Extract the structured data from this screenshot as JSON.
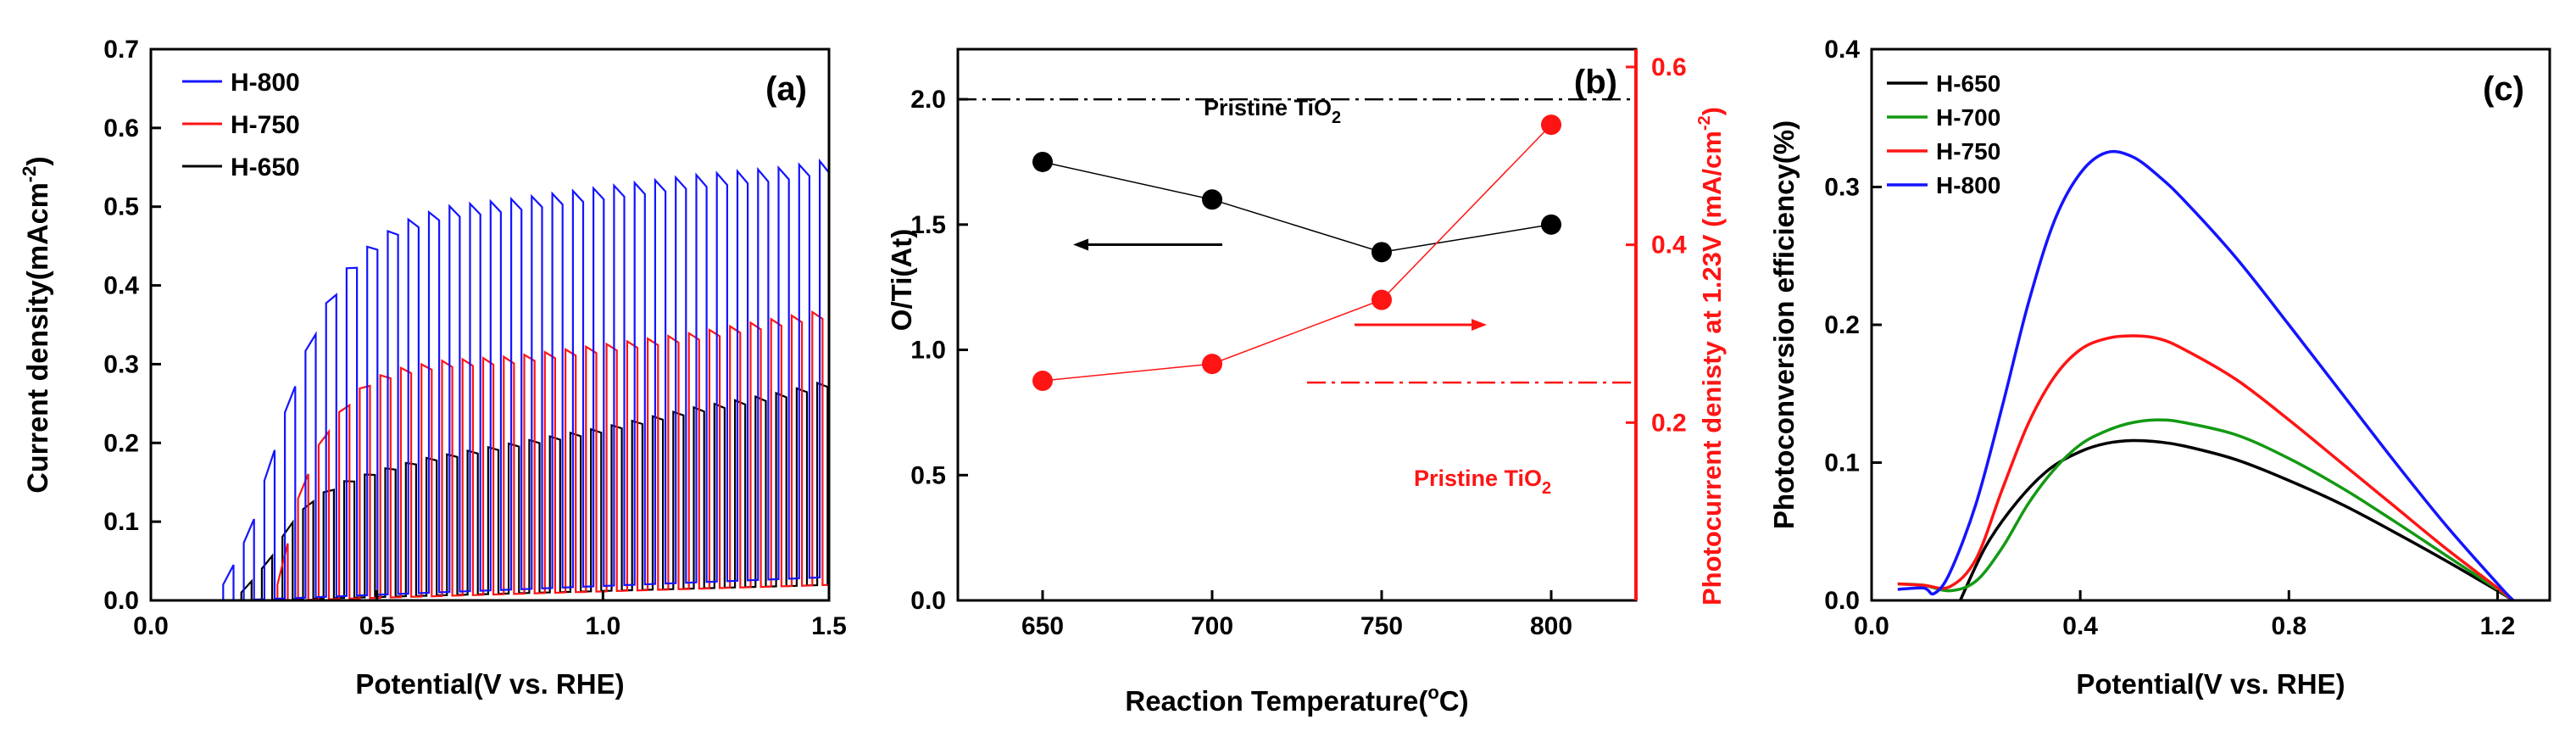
{
  "colors": {
    "blue": "#1414ff",
    "red": "#ff1414",
    "green": "#139913",
    "black": "#000000"
  },
  "panels": {
    "a": {
      "label": "(a)",
      "xlabel": "Potential(V vs. RHE)",
      "ylabel": "Current density(mAcm",
      "ylabel_sup": "-2",
      "ylabel_close": ")",
      "xlim": [
        0.0,
        1.5
      ],
      "ylim": [
        0.0,
        0.7
      ],
      "xticks": [
        "0.0",
        "0.5",
        "1.0",
        "1.5"
      ],
      "yticks": [
        "0.0",
        "0.1",
        "0.2",
        "0.3",
        "0.4",
        "0.5",
        "0.6",
        "0.7"
      ],
      "legend": [
        {
          "name": "H-800",
          "color": "#1414ff"
        },
        {
          "name": "H-750",
          "color": "#ff1414"
        },
        {
          "name": "H-650",
          "color": "#000000"
        }
      ]
    },
    "b": {
      "label": "(b)",
      "xlabel": "Reaction Temperature(",
      "xlabel_sup": "o",
      "xlabel_end": "C)",
      "ylabel_left": "O/Ti(At)",
      "ylabel_right": "Photocurrent denisty at 1.23V (mA/cm",
      "ylabel_right_sup": "-2",
      "ylabel_right_close": ")",
      "xticks": [
        "650",
        "700",
        "750",
        "800"
      ],
      "yticks_left": [
        "0.0",
        "0.5",
        "1.0",
        "1.5",
        "2.0"
      ],
      "yticks_right": [
        "0.2",
        "0.4",
        "0.6"
      ],
      "ref_black_text": "Pristine TiO",
      "ref_black_sub": "2",
      "ref_red_text": "Pristine TiO",
      "ref_red_sub": "2"
    },
    "c": {
      "label": "(c)",
      "xlabel": "Potential(V vs. RHE)",
      "ylabel": "Photoconversion efficiency(%)",
      "xticks": [
        "0.0",
        "0.4",
        "0.8",
        "1.2"
      ],
      "yticks": [
        "0.0",
        "0.1",
        "0.2",
        "0.3",
        "0.4"
      ],
      "legend": [
        {
          "name": "H-650",
          "color": "#000000"
        },
        {
          "name": "H-700",
          "color": "#139913"
        },
        {
          "name": "H-750",
          "color": "#ff1414"
        },
        {
          "name": "H-800",
          "color": "#1414ff"
        }
      ]
    }
  },
  "chart_data": [
    {
      "type": "line",
      "title": "(a)",
      "xlabel": "Potential(V vs. RHE)",
      "ylabel": "Current density(mAcm-2)",
      "xlim": [
        0.0,
        1.5
      ],
      "ylim": [
        0.0,
        0.7
      ],
      "chopped_light": true,
      "pulse_start": 0.16,
      "pulse_period": 0.0455,
      "series": [
        {
          "name": "H-800",
          "color": "#1414ff",
          "onset": 0.16,
          "dark_min": 0.0,
          "dark_end": 0.03,
          "envelope_x": [
            0.16,
            0.22,
            0.27,
            0.33,
            0.38,
            0.43,
            0.48,
            0.55,
            0.65,
            0.8,
            1.0,
            1.2,
            1.4,
            1.5
          ],
          "envelope_y": [
            0.02,
            0.09,
            0.19,
            0.3,
            0.37,
            0.42,
            0.45,
            0.48,
            0.5,
            0.51,
            0.525,
            0.54,
            0.55,
            0.56
          ]
        },
        {
          "name": "H-750",
          "color": "#ff1414",
          "onset": 0.28,
          "dark_min": 0.0,
          "dark_end": 0.02,
          "envelope_x": [
            0.28,
            0.33,
            0.38,
            0.43,
            0.48,
            0.55,
            0.65,
            0.8,
            1.0,
            1.2,
            1.4,
            1.5
          ],
          "envelope_y": [
            0.02,
            0.14,
            0.21,
            0.25,
            0.28,
            0.295,
            0.305,
            0.31,
            0.325,
            0.34,
            0.36,
            0.37
          ]
        },
        {
          "name": "H-650",
          "color": "#000000",
          "onset": 0.2,
          "dark_min": 0.0,
          "dark_end": 0.02,
          "envelope_x": [
            0.2,
            0.26,
            0.31,
            0.36,
            0.42,
            0.5,
            0.6,
            0.8,
            1.0,
            1.2,
            1.4,
            1.5
          ],
          "envelope_y": [
            0.01,
            0.05,
            0.1,
            0.13,
            0.15,
            0.165,
            0.18,
            0.2,
            0.22,
            0.245,
            0.265,
            0.28
          ]
        }
      ]
    },
    {
      "type": "scatter",
      "title": "(b)",
      "xlabel": "Reaction Temperature(oC)",
      "ylabel": "O/Ti(At)",
      "ylabel_right": "Photocurrent denisty at 1.23V (mA/cm-2)",
      "xlim": [
        625,
        825
      ],
      "ylim": [
        0.0,
        2.2
      ],
      "ylim_right": [
        0.0,
        0.62
      ],
      "series": [
        {
          "name": "O/Ti",
          "axis": "left",
          "color": "#000000",
          "x": [
            650,
            700,
            750,
            800
          ],
          "y": [
            1.75,
            1.6,
            1.39,
            1.5
          ]
        },
        {
          "name": "Photocurrent density",
          "axis": "right",
          "color": "#ff1414",
          "x": [
            650,
            700,
            750,
            800
          ],
          "y": [
            0.247,
            0.266,
            0.338,
            0.535
          ]
        }
      ],
      "reference_lines": [
        {
          "label": "Pristine TiO2",
          "axis": "left",
          "y": 2.0,
          "x_from": 625,
          "x_to": 825,
          "color": "#000000"
        },
        {
          "label": "Pristine TiO2",
          "axis": "right",
          "y": 0.245,
          "x_from": 728,
          "x_to": 825,
          "color": "#ff1414"
        }
      ],
      "arrows": [
        {
          "axis": "left",
          "from_x": 703,
          "to_x": 660,
          "y": 1.42,
          "color": "#000000"
        },
        {
          "axis": "left",
          "from_x": 742,
          "to_x": 780,
          "y": 1.1,
          "color": "#ff1414"
        }
      ]
    },
    {
      "type": "line",
      "title": "(c)",
      "xlabel": "Potential(V vs. RHE)",
      "ylabel": "Photoconversion efficiency(%)",
      "xlim": [
        0.0,
        1.3
      ],
      "ylim": [
        0.0,
        0.4
      ],
      "series": [
        {
          "name": "H-650",
          "color": "#000000",
          "x": [
            0.17,
            0.22,
            0.28,
            0.34,
            0.4,
            0.45,
            0.5,
            0.55,
            0.6,
            0.7,
            0.8,
            0.9,
            1.0,
            1.1,
            1.2,
            1.23
          ],
          "y": [
            0.0,
            0.04,
            0.072,
            0.095,
            0.108,
            0.114,
            0.116,
            0.115,
            0.112,
            0.102,
            0.087,
            0.07,
            0.05,
            0.029,
            0.007,
            0.0
          ]
        },
        {
          "name": "H-700",
          "color": "#139913",
          "x": [
            0.05,
            0.1,
            0.15,
            0.2,
            0.25,
            0.3,
            0.35,
            0.4,
            0.45,
            0.5,
            0.55,
            0.6,
            0.7,
            0.8,
            0.9,
            1.0,
            1.1,
            1.2,
            1.23
          ],
          "y": [
            0.012,
            0.011,
            0.007,
            0.014,
            0.038,
            0.07,
            0.095,
            0.113,
            0.123,
            0.129,
            0.131,
            0.129,
            0.12,
            0.103,
            0.082,
            0.058,
            0.033,
            0.008,
            0.0
          ]
        },
        {
          "name": "H-750",
          "color": "#ff1414",
          "x": [
            0.05,
            0.1,
            0.15,
            0.2,
            0.25,
            0.3,
            0.35,
            0.4,
            0.45,
            0.5,
            0.55,
            0.6,
            0.7,
            0.8,
            0.9,
            1.0,
            1.1,
            1.2,
            1.23
          ],
          "y": [
            0.012,
            0.011,
            0.01,
            0.03,
            0.08,
            0.128,
            0.162,
            0.182,
            0.19,
            0.192,
            0.19,
            0.182,
            0.16,
            0.131,
            0.1,
            0.069,
            0.038,
            0.009,
            0.0
          ]
        },
        {
          "name": "H-800",
          "color": "#1414ff",
          "x": [
            0.05,
            0.1,
            0.12,
            0.15,
            0.2,
            0.25,
            0.3,
            0.35,
            0.4,
            0.45,
            0.5,
            0.55,
            0.6,
            0.7,
            0.8,
            0.9,
            1.0,
            1.1,
            1.2,
            1.23
          ],
          "y": [
            0.008,
            0.009,
            0.005,
            0.02,
            0.07,
            0.14,
            0.215,
            0.275,
            0.31,
            0.325,
            0.322,
            0.308,
            0.29,
            0.248,
            0.2,
            0.151,
            0.102,
            0.055,
            0.012,
            0.0
          ]
        }
      ]
    }
  ]
}
